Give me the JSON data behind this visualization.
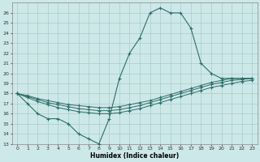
{
  "xlabel": "Humidex (Indice chaleur)",
  "background_color": "#cde8e8",
  "line_color": "#2e6e6a",
  "grid_color": "#a8cccc",
  "xlim": [
    -0.5,
    23.5
  ],
  "ylim": [
    13,
    27
  ],
  "yticks": [
    13,
    14,
    15,
    16,
    17,
    18,
    19,
    20,
    21,
    22,
    23,
    24,
    25,
    26
  ],
  "xticks": [
    0,
    1,
    2,
    3,
    4,
    5,
    6,
    7,
    8,
    9,
    10,
    11,
    12,
    13,
    14,
    15,
    16,
    17,
    18,
    19,
    20,
    21,
    22,
    23
  ],
  "series1_x": [
    0,
    1,
    2,
    3,
    4,
    5,
    6,
    7,
    8,
    9,
    10,
    11,
    12,
    13,
    14,
    15,
    16,
    17,
    18,
    19,
    20,
    21,
    22,
    23
  ],
  "series1_y": [
    18.0,
    17.0,
    16.0,
    15.5,
    15.5,
    15.0,
    14.0,
    13.5,
    13.0,
    15.5,
    19.5,
    22.0,
    23.5,
    26.0,
    26.5,
    26.0,
    26.0,
    24.5,
    21.0,
    20.0,
    19.5,
    19.5,
    19.5,
    19.5
  ],
  "series2_x": [
    0,
    1,
    2,
    3,
    4,
    5,
    6,
    7,
    8,
    9,
    10,
    11,
    12,
    13,
    14,
    15,
    16,
    17,
    18,
    19,
    20,
    21,
    22,
    23
  ],
  "series2_y": [
    18.0,
    17.8,
    17.5,
    17.3,
    17.1,
    16.9,
    16.8,
    16.7,
    16.6,
    16.6,
    16.7,
    16.9,
    17.1,
    17.3,
    17.6,
    17.9,
    18.2,
    18.5,
    18.8,
    19.1,
    19.3,
    19.5,
    19.5,
    19.5
  ],
  "series3_x": [
    0,
    1,
    2,
    3,
    4,
    5,
    6,
    7,
    8,
    9,
    10,
    11,
    12,
    13,
    14,
    15,
    16,
    17,
    18,
    19,
    20,
    21,
    22,
    23
  ],
  "series3_y": [
    18.0,
    17.7,
    17.4,
    17.1,
    16.9,
    16.7,
    16.5,
    16.4,
    16.3,
    16.3,
    16.4,
    16.6,
    16.8,
    17.1,
    17.4,
    17.7,
    18.0,
    18.3,
    18.6,
    18.9,
    19.1,
    19.3,
    19.4,
    19.5
  ],
  "series4_x": [
    0,
    1,
    2,
    3,
    4,
    5,
    6,
    7,
    8,
    9,
    10,
    11,
    12,
    13,
    14,
    15,
    16,
    17,
    18,
    19,
    20,
    21,
    22,
    23
  ],
  "series4_y": [
    18.0,
    17.6,
    17.2,
    16.9,
    16.6,
    16.4,
    16.2,
    16.1,
    16.0,
    16.0,
    16.1,
    16.3,
    16.5,
    16.8,
    17.1,
    17.4,
    17.7,
    18.0,
    18.3,
    18.6,
    18.8,
    19.0,
    19.2,
    19.3
  ]
}
